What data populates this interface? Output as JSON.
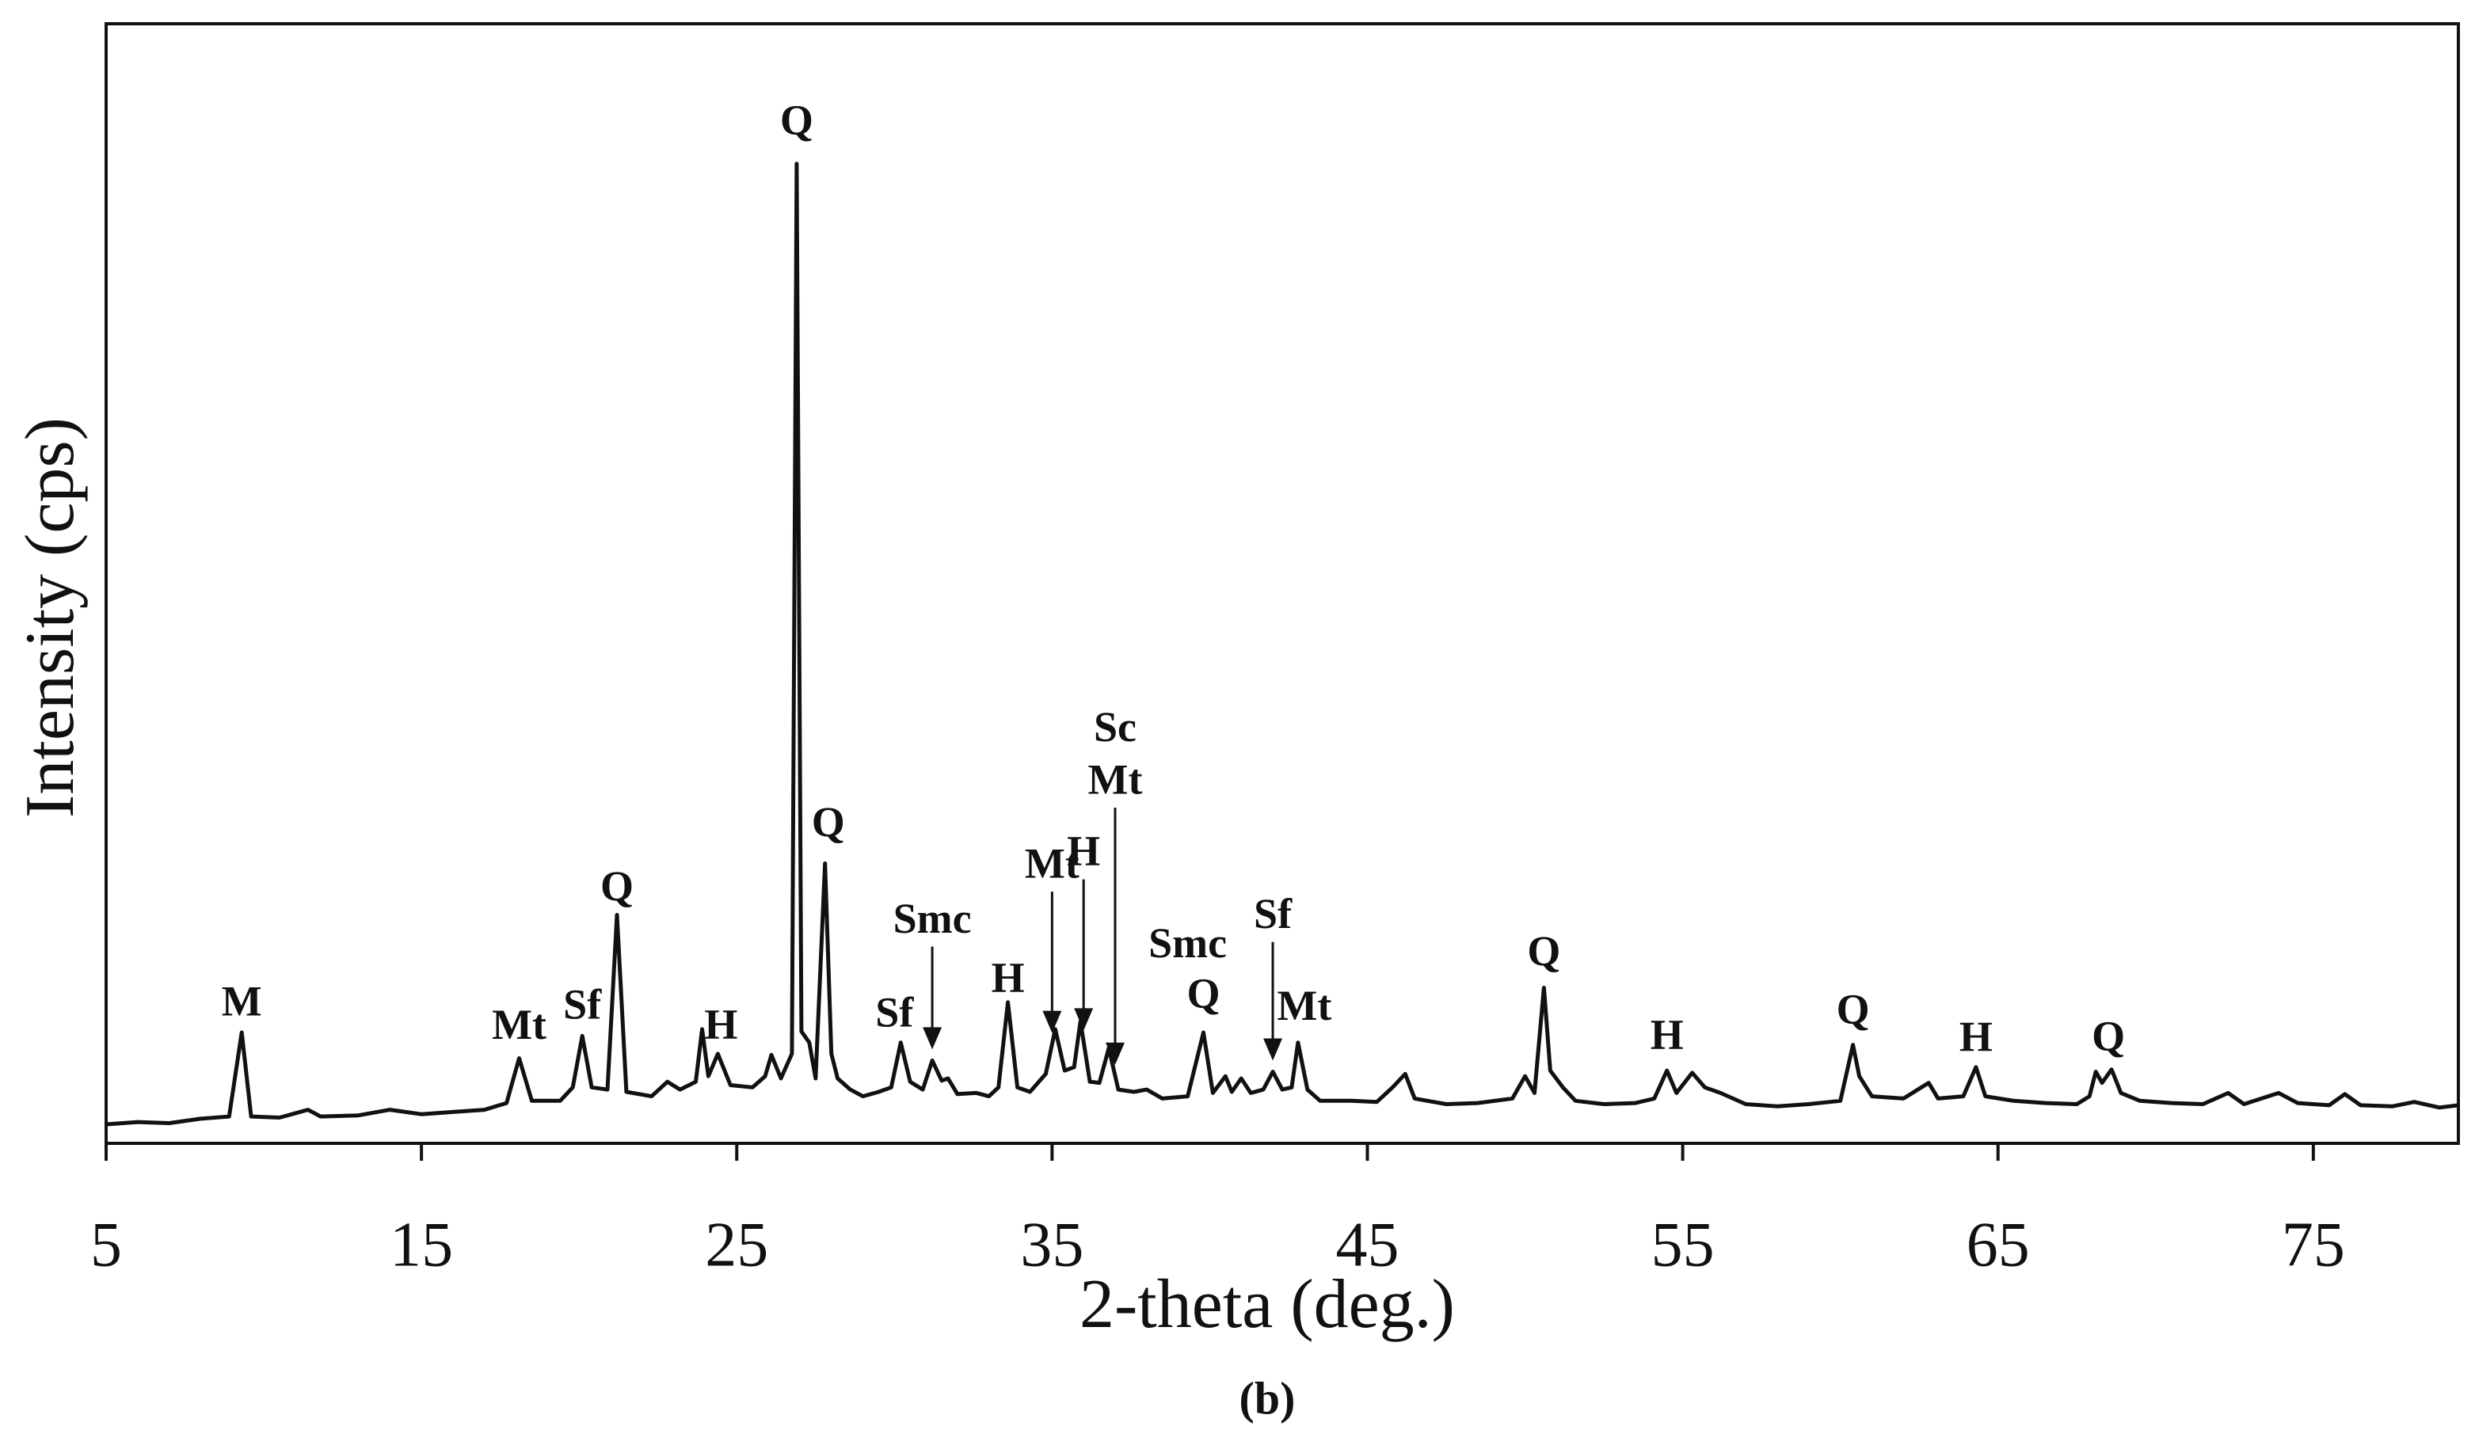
{
  "chart_data": {
    "type": "line",
    "xlabel": "2-theta (deg.)",
    "ylabel": "Intensity (cps)",
    "caption": "(b)",
    "xlim": [
      5,
      79.6
    ],
    "ylim": [
      0,
      100
    ],
    "xticks": [
      5,
      15,
      25,
      35,
      45,
      55,
      65,
      75
    ],
    "color": "#111111",
    "x": [
      5.0,
      6.0,
      7.0,
      8.0,
      8.9,
      9.3,
      9.6,
      10.5,
      11.4,
      11.8,
      13.0,
      14.0,
      15.0,
      16.0,
      17.0,
      17.7,
      18.1,
      18.5,
      19.4,
      19.8,
      20.1,
      20.4,
      20.9,
      21.2,
      21.5,
      22.3,
      22.8,
      23.2,
      23.7,
      23.9,
      24.1,
      24.4,
      24.8,
      25.5,
      25.9,
      26.1,
      26.4,
      26.75,
      26.9,
      27.05,
      27.3,
      27.5,
      27.8,
      28.0,
      28.2,
      28.6,
      29.0,
      29.5,
      29.9,
      30.2,
      30.5,
      30.9,
      31.2,
      31.5,
      31.7,
      32.0,
      32.6,
      33.0,
      33.3,
      33.6,
      33.9,
      34.3,
      34.8,
      35.1,
      35.4,
      35.7,
      35.9,
      36.2,
      36.5,
      36.8,
      37.1,
      37.6,
      38.0,
      38.5,
      39.3,
      39.8,
      40.1,
      40.5,
      40.7,
      41.0,
      41.3,
      41.7,
      42.0,
      42.3,
      42.6,
      42.8,
      43.1,
      43.5,
      44.5,
      45.3,
      45.8,
      46.2,
      46.5,
      47.5,
      48.5,
      49.6,
      50.0,
      50.3,
      50.6,
      50.8,
      51.2,
      51.6,
      52.5,
      53.5,
      54.1,
      54.5,
      54.8,
      55.3,
      55.7,
      56.2,
      57.0,
      58.0,
      59.0,
      60.0,
      60.4,
      60.6,
      61.0,
      62.0,
      62.8,
      63.1,
      63.9,
      64.3,
      64.6,
      65.5,
      66.5,
      67.5,
      67.9,
      68.1,
      68.3,
      68.6,
      68.9,
      69.5,
      70.5,
      71.5,
      72.3,
      72.8,
      73.9,
      74.5,
      75.5,
      76.0,
      76.5,
      77.5,
      78.2,
      79.0,
      79.6
    ],
    "values": [
      1.7,
      1.9,
      1.8,
      2.2,
      2.4,
      9.9,
      2.4,
      2.3,
      3.0,
      2.4,
      2.5,
      3.0,
      2.6,
      2.8,
      3.0,
      3.6,
      7.6,
      3.8,
      3.8,
      5.0,
      9.6,
      5.0,
      4.8,
      20.4,
      4.6,
      4.2,
      5.5,
      4.8,
      5.5,
      10.2,
      6.0,
      8.0,
      5.2,
      5.0,
      6.0,
      7.9,
      5.8,
      8.0,
      87.5,
      10.0,
      9.0,
      5.8,
      25.0,
      8.0,
      5.8,
      4.8,
      4.2,
      4.6,
      5.0,
      9.0,
      5.5,
      4.8,
      7.4,
      5.6,
      5.8,
      4.4,
      4.5,
      4.2,
      5.0,
      12.6,
      5.0,
      4.6,
      6.2,
      10.2,
      6.5,
      6.8,
      10.9,
      5.5,
      5.4,
      8.5,
      4.8,
      4.6,
      4.8,
      4.0,
      4.2,
      9.9,
      4.5,
      6.0,
      4.6,
      5.8,
      4.5,
      4.8,
      6.4,
      4.8,
      5.0,
      9.0,
      4.8,
      3.8,
      3.8,
      3.7,
      5.0,
      6.2,
      4.0,
      3.5,
      3.6,
      4.0,
      6.0,
      4.5,
      13.9,
      6.5,
      5.0,
      3.8,
      3.5,
      3.6,
      4.0,
      6.5,
      4.5,
      6.3,
      5.0,
      4.5,
      3.5,
      3.3,
      3.5,
      3.8,
      8.8,
      6.0,
      4.2,
      4.0,
      5.4,
      4.0,
      4.2,
      6.8,
      4.2,
      3.8,
      3.6,
      3.5,
      4.2,
      6.4,
      5.4,
      6.6,
      4.5,
      3.8,
      3.6,
      3.5,
      4.5,
      3.5,
      4.5,
      3.6,
      3.4,
      4.4,
      3.4,
      3.3,
      3.7,
      3.2,
      3.4
    ],
    "annotations": [
      {
        "text": "M",
        "x": 9.3,
        "y": 12.3
      },
      {
        "text": "Mt",
        "x": 18.1,
        "y": 10.2
      },
      {
        "text": "Sf",
        "x": 20.1,
        "y": 12
      },
      {
        "text": "Q",
        "x": 21.2,
        "y": 22.6
      },
      {
        "text": "H",
        "x": 24.5,
        "y": 10.2
      },
      {
        "text": "Q",
        "x": 26.9,
        "y": 91
      },
      {
        "text": "Q",
        "x": 27.9,
        "y": 28.3
      },
      {
        "text": "Sf",
        "x": 30.0,
        "y": 11.3
      },
      {
        "text": "Smc",
        "x": 31.2,
        "y": 19.7,
        "arrow": true
      },
      {
        "text": "H",
        "x": 33.6,
        "y": 14.4
      },
      {
        "text": "Mt",
        "x": 35.0,
        "y": 24.6,
        "arrow": true
      },
      {
        "text": "H",
        "x": 36.0,
        "y": 25.7,
        "arrow": true
      },
      {
        "text": "Sc",
        "x": 37.0,
        "y": 36.8
      },
      {
        "text": "Mt",
        "x": 37.0,
        "y": 32.1,
        "arrow": true
      },
      {
        "text": "Smc",
        "x": 39.3,
        "y": 17.5
      },
      {
        "text": "Q",
        "x": 39.8,
        "y": 13
      },
      {
        "text": "Sf",
        "x": 42.0,
        "y": 20.1,
        "arrow": true
      },
      {
        "text": "Mt",
        "x": 43.0,
        "y": 11.9
      },
      {
        "text": "Q",
        "x": 50.6,
        "y": 16.8
      },
      {
        "text": "H",
        "x": 54.5,
        "y": 9.3
      },
      {
        "text": "Q",
        "x": 60.4,
        "y": 11.6
      },
      {
        "text": "H",
        "x": 64.3,
        "y": 9.1
      },
      {
        "text": "Q",
        "x": 68.5,
        "y": 9.2
      }
    ]
  }
}
